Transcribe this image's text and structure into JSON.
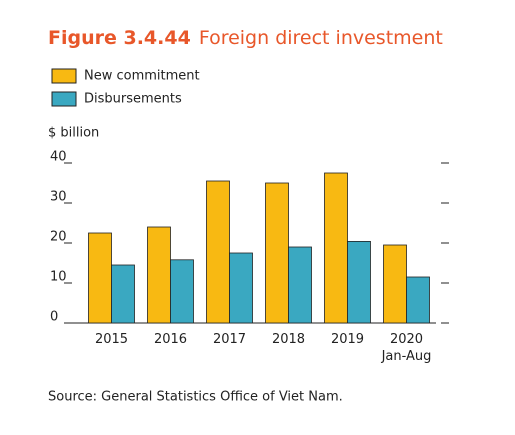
{
  "chart_data": {
    "type": "bar",
    "figure_label": "Figure 3.4.44",
    "title": "Foreign direct investment",
    "y_label": "$ billion",
    "source": "Source: General Statistics Office of Viet Nam.",
    "categories": [
      "2015",
      "2016",
      "2017",
      "2018",
      "2019",
      "2020\nJan-Aug"
    ],
    "series": [
      {
        "name": "New commitment",
        "color": "#f8b912",
        "values": [
          22.5,
          24,
          35.5,
          35,
          37.5,
          19.5
        ]
      },
      {
        "name": "Disbursements",
        "color": "#3aa8c1",
        "values": [
          14.5,
          15.8,
          17.5,
          19,
          20.4,
          11.5
        ]
      }
    ],
    "ylim": [
      0,
      40
    ],
    "yticks": [
      0,
      10,
      20,
      30,
      40
    ]
  }
}
